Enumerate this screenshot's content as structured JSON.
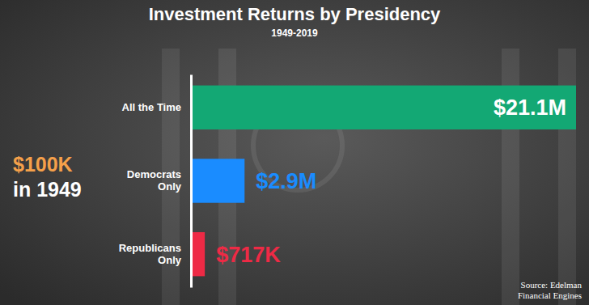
{
  "chart_data": {
    "type": "bar",
    "orientation": "horizontal",
    "title": "Investment Returns by Presidency",
    "subtitle": "1949-2019",
    "categories": [
      "All the Time",
      "Democrats\nOnly",
      "Republicans\nOnly"
    ],
    "values": [
      21100000,
      2900000,
      717000
    ],
    "value_labels": [
      "$21.1M",
      "$2.9M",
      "$717K"
    ],
    "colors": [
      "#13a874",
      "#1a8cff",
      "#ee2a45"
    ],
    "xlim": [
      0,
      21100000
    ],
    "tick_labels": "y",
    "grid": false,
    "data_labels": true,
    "annotations": [
      "$100K",
      "in 1949"
    ],
    "source": "Source: Edelman\nFinancial Engines"
  }
}
